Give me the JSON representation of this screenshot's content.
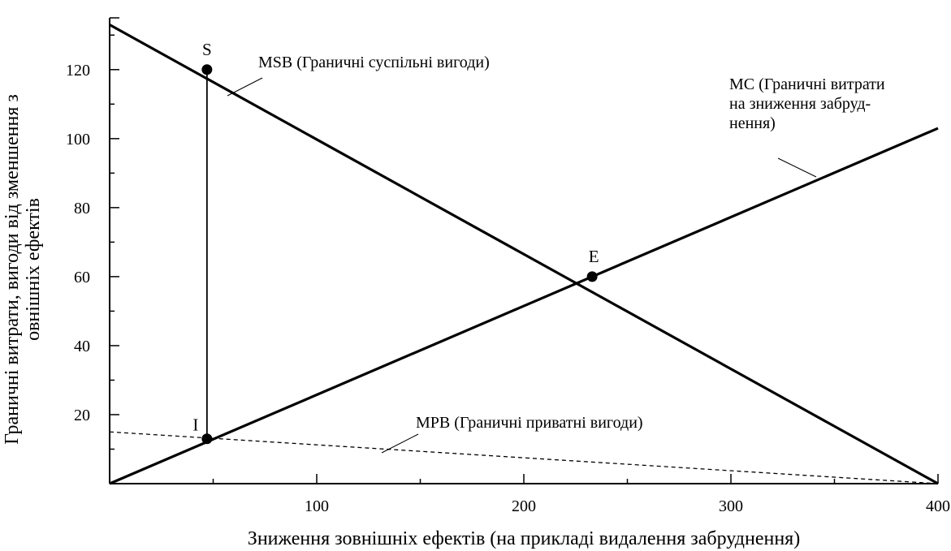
{
  "chart_data": {
    "type": "line",
    "xlabel": "Зниження зовнішніх ефектів (на прикладі видалення забруднення)",
    "ylabel_lines": [
      "Граничні витрати, вигоди від зменшення з",
      "овнішніх ефектів"
    ],
    "xlim": [
      0,
      400
    ],
    "ylim": [
      0,
      135
    ],
    "x_ticks": [
      100,
      200,
      300,
      400
    ],
    "y_ticks": [
      20,
      40,
      60,
      80,
      100,
      120
    ],
    "grid": false,
    "series": [
      {
        "name": "MSB (Граничні суспільні вигоди)",
        "style": "solid-thick",
        "x": [
          0,
          400
        ],
        "y": [
          133,
          0
        ]
      },
      {
        "name": "MC (Граничні витрати на зниження забруднення)",
        "style": "solid-thick",
        "x": [
          0,
          400
        ],
        "y": [
          0,
          103
        ]
      },
      {
        "name": "MPB (Граничні приватні вигоди)",
        "style": "dashed",
        "x": [
          0,
          400
        ],
        "y": [
          15,
          0
        ]
      }
    ],
    "annotation_lines": {
      "msb": [
        "MSB (Граничні суспільні вигоди)"
      ],
      "mc": [
        "MC (Граничні витрати",
        "на зниження забруд-",
        "нення)"
      ],
      "mpb": [
        "MPB (Граничні приватні вигоди)"
      ]
    },
    "points": [
      {
        "label": "S",
        "x": 47,
        "y": 120
      },
      {
        "label": "E",
        "x": 233,
        "y": 60
      },
      {
        "label": "I",
        "x": 47,
        "y": 13
      }
    ],
    "vertical_segment": {
      "x": 47,
      "y_from": 13,
      "y_to": 120
    }
  }
}
